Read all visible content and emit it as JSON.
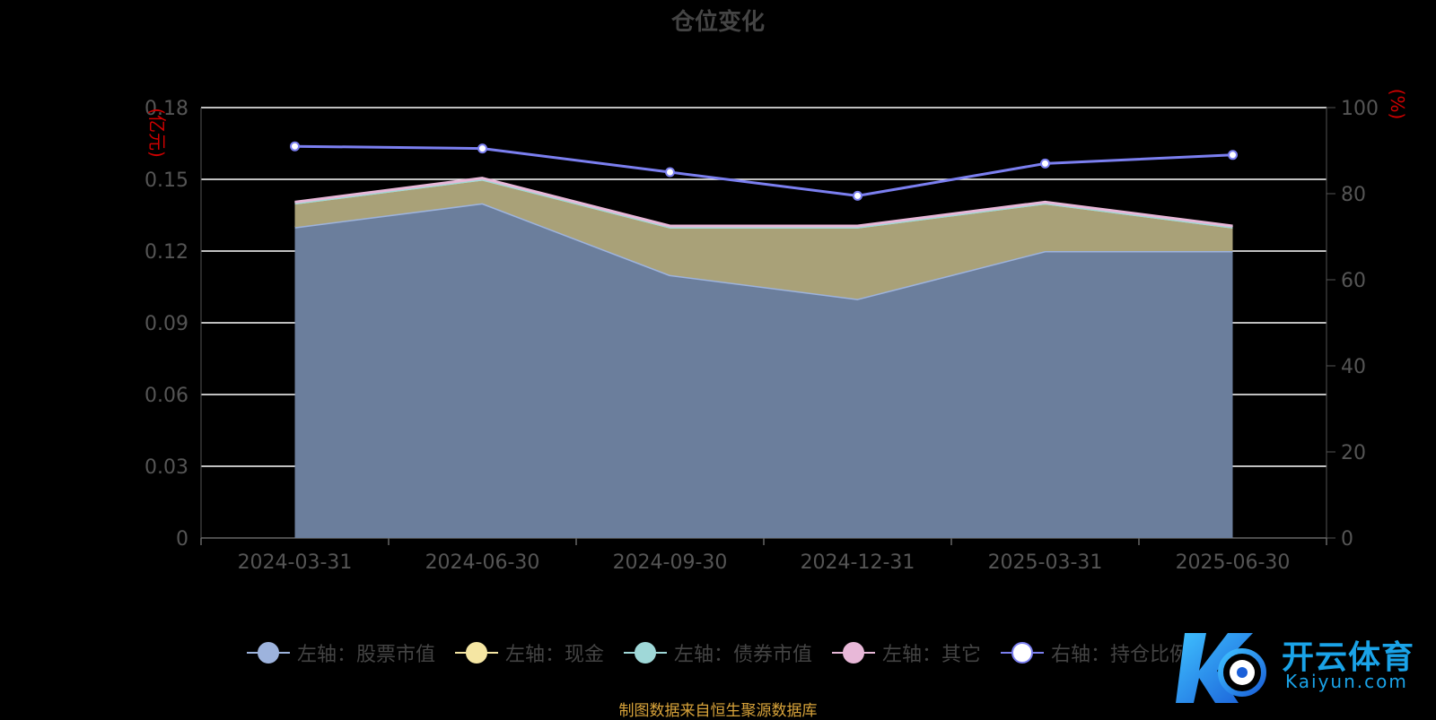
{
  "chart_data": {
    "type": "area",
    "title": "仓位变化",
    "categories": [
      "2024-03-31",
      "2024-06-30",
      "2024-09-30",
      "2024-12-31",
      "2025-03-31",
      "2025-06-30"
    ],
    "y_left": {
      "unit_label": "(亿元)",
      "ticks": [
        "0",
        "0.03",
        "0.06",
        "0.09",
        "0.12",
        "0.15",
        "0.18"
      ],
      "range": [
        0,
        0.18
      ]
    },
    "y_right": {
      "unit_label": "(%)",
      "ticks": [
        "0",
        "20",
        "40",
        "60",
        "80",
        "100"
      ],
      "range": [
        0,
        100
      ]
    },
    "series": [
      {
        "name": "左轴：股票市值",
        "axis": "left",
        "stacked": true,
        "color": "#9db3dd",
        "values": [
          0.13,
          0.14,
          0.11,
          0.1,
          0.12,
          0.12
        ]
      },
      {
        "name": "左轴：现金",
        "axis": "left",
        "stacked": true,
        "color": "#f5e6a3",
        "values": [
          0.01,
          0.01,
          0.02,
          0.03,
          0.02,
          0.01
        ]
      },
      {
        "name": "左轴：债券市值",
        "axis": "left",
        "stacked": true,
        "color": "#9fd8d8",
        "values": [
          0,
          0,
          0,
          0,
          0,
          0
        ]
      },
      {
        "name": "左轴：其它",
        "axis": "left",
        "stacked": true,
        "color": "#e8b8d8",
        "values": [
          0.0005,
          0.0005,
          0.0005,
          0.0005,
          0.0005,
          0.0005
        ]
      },
      {
        "name": "右轴：持仓比例",
        "axis": "right",
        "stacked": false,
        "color": "#7b7ff0",
        "values": [
          91,
          90.5,
          85,
          79.5,
          87,
          89
        ]
      }
    ],
    "legend_position": "bottom",
    "grid": true
  },
  "source_note": "制图数据来自恒生聚源数据库",
  "watermark": {
    "name": "开云体育",
    "url": "Kaiyun.com"
  }
}
